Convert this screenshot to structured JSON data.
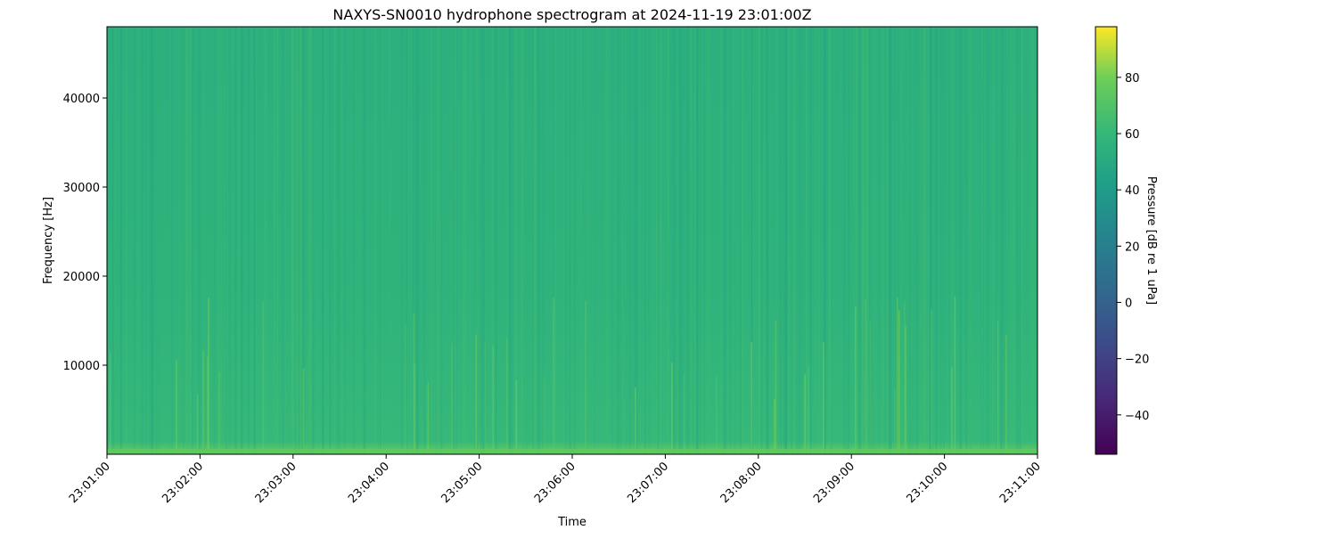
{
  "chart_data": {
    "type": "heatmap",
    "title": "NAXYS-SN0010 hydrophone spectrogram at 2024-11-19 23:01:00Z",
    "xlabel": "Time",
    "ylabel": "Frequency [Hz]",
    "x_ticks": [
      "23:01:00",
      "23:02:00",
      "23:03:00",
      "23:04:00",
      "23:05:00",
      "23:06:00",
      "23:07:00",
      "23:08:00",
      "23:09:00",
      "23:10:00",
      "23:11:00"
    ],
    "xlim": [
      "23:01:00",
      "23:11:00"
    ],
    "y_ticks": [
      10000,
      20000,
      30000,
      40000
    ],
    "ylim": [
      0,
      48000
    ],
    "colorbar": {
      "label": "Pressure [dB re 1 uPa]",
      "colormap": "viridis",
      "range": [
        -54,
        98
      ],
      "ticks": [
        -40,
        -20,
        0,
        20,
        40,
        60,
        80
      ]
    },
    "typical_level_db": 50,
    "low_frequency_band_level_db": 62,
    "transient_peak_level_db": 65
  }
}
